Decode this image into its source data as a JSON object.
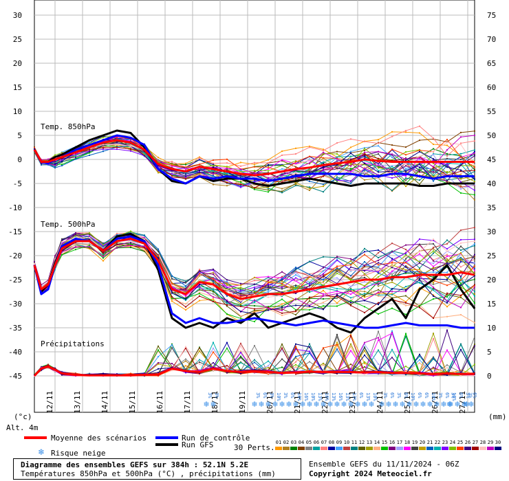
{
  "chart_data": {
    "type": "line",
    "left_axis": {
      "unit_label": "(°c)",
      "ticks": [
        30,
        25,
        20,
        15,
        10,
        5,
        0,
        -5,
        -10,
        -15,
        -20,
        -25,
        -30,
        -35,
        -40,
        -45
      ],
      "range": [
        -45,
        30
      ]
    },
    "right_axis": {
      "unit_label": "(mm)",
      "ticks": [
        75,
        70,
        65,
        60,
        55,
        50,
        45,
        40,
        35,
        30,
        25,
        20,
        15,
        10,
        5,
        0
      ],
      "range": [
        0,
        75
      ]
    },
    "altitude_label": "Alt. 4m",
    "section_labels": [
      "Temp. 850hPa",
      "Temp. 500hPa",
      "Précipitations"
    ],
    "dates": [
      "12/11",
      "13/11",
      "14/11",
      "15/11",
      "16/11",
      "17/11",
      "18/11",
      "19/11",
      "20/11",
      "21/11",
      "22/11",
      "23/11",
      "24/11",
      "25/11",
      "26/11",
      "27/11"
    ],
    "x_range_hours": [
      0,
      384
    ],
    "hours": [
      0,
      6,
      12,
      18,
      24,
      36,
      48,
      60,
      72,
      84,
      96,
      108,
      120,
      132,
      144,
      156,
      168,
      180,
      192,
      204,
      216,
      228,
      240,
      252,
      264,
      276,
      288,
      300,
      312,
      324,
      336,
      348,
      360,
      372,
      384
    ],
    "mean_850": [
      2,
      -0.5,
      -0.5,
      0,
      0.5,
      1.5,
      2.5,
      3.5,
      4,
      3.5,
      2,
      -1,
      -2,
      -2.5,
      -1.5,
      -2,
      -2.5,
      -3,
      -3.3,
      -3,
      -2.5,
      -2,
      -1.7,
      -1.2,
      -0.8,
      -0.5,
      0,
      -0.3,
      -0.5,
      -0.5,
      -0.5,
      -0.5,
      -0.5,
      -0.5,
      -0.5
    ],
    "control_850": [
      2,
      -0.5,
      -0.8,
      0,
      0.5,
      2,
      3,
      4,
      5,
      4.5,
      3,
      -2,
      -4,
      -5,
      -3.5,
      -4,
      -3.5,
      -4,
      -4,
      -4.5,
      -4,
      -3.5,
      -3,
      -3,
      -3,
      -3,
      -3.5,
      -3.5,
      -3,
      -3,
      -3.5,
      -4,
      -3.5,
      -3.5,
      -3.5
    ],
    "gfs_850": [
      2,
      -0.5,
      -0.5,
      0.5,
      1,
      2.5,
      4,
      5,
      6,
      5.5,
      2.5,
      -2,
      -4.5,
      -5,
      -3.5,
      -4.5,
      -4,
      -4,
      -5,
      -5.5,
      -5,
      -4.5,
      -4,
      -4.5,
      -5,
      -5.5,
      -5,
      -5,
      -5,
      -5,
      -5.5,
      -5.5,
      -5,
      -5,
      -5
    ],
    "mean_500": [
      -22,
      -27,
      -26,
      -22,
      -18.5,
      -17,
      -17,
      -19,
      -17,
      -16.5,
      -17.5,
      -21,
      -27,
      -28,
      -25.5,
      -26,
      -28,
      -29,
      -28.5,
      -28,
      -28,
      -27.5,
      -27,
      -26.5,
      -26,
      -25.5,
      -25,
      -25,
      -24.5,
      -24.5,
      -24,
      -24,
      -24,
      -23.5,
      -24
    ],
    "control_500": [
      -22,
      -28,
      -27,
      -22,
      -18,
      -16.5,
      -17,
      -19,
      -16.5,
      -16,
      -17,
      -22,
      -32,
      -34,
      -33,
      -34,
      -34,
      -33.5,
      -33,
      -33.5,
      -34,
      -34.5,
      -34,
      -33.5,
      -34,
      -34.5,
      -35,
      -35,
      -34.5,
      -34,
      -34.5,
      -34.5,
      -34.5,
      -35,
      -35
    ],
    "gfs_500": [
      -22,
      -27.5,
      -26,
      -21.5,
      -18,
      -17,
      -17,
      -19,
      -16,
      -15.5,
      -17,
      -23,
      -33,
      -35,
      -34,
      -35,
      -33,
      -34,
      -32,
      -35,
      -34,
      -33,
      -32,
      -33,
      -35,
      -36,
      -33,
      -31,
      -29,
      -33,
      -27,
      -25,
      -22,
      -27,
      -31
    ],
    "mean_precip": [
      0,
      1.5,
      2,
      1.3,
      0.5,
      0.2,
      0.1,
      0.1,
      0.1,
      0.1,
      0.2,
      0.3,
      1.5,
      1,
      0.8,
      1.5,
      1,
      0.8,
      1,
      0.8,
      0.6,
      0.7,
      0.9,
      0.8,
      0.8,
      0.8,
      0.7,
      0.8,
      0.6,
      0.6,
      0.5,
      0.4,
      0.5,
      0.4,
      0.4
    ],
    "snow_risk_percent": [
      {
        "hour": 150,
        "values": [
          "3%",
          "3%"
        ]
      },
      {
        "hour": 192,
        "values": [
          "3%",
          "6%",
          "3%",
          "10%",
          "3%",
          "6%",
          "10%",
          "16%",
          "10%",
          "13%",
          "16%",
          "13%",
          "16%",
          "13%",
          "13%",
          "6%",
          "13%",
          "10%"
        ]
      },
      {
        "hour": 303,
        "values": [
          "3%",
          "6%",
          "3%",
          "6%",
          "10%",
          "6%",
          "6%",
          "10%",
          "3%",
          "6%",
          "10%",
          "6%",
          "3%",
          "6%",
          "3%"
        ]
      },
      {
        "hour": 362,
        "values": [
          "3%"
        ]
      },
      {
        "hour": 377,
        "values": [
          "3%"
        ]
      }
    ],
    "legend": {
      "mean": "Moyenne des scénarios",
      "control": "Run de contrôle",
      "gfs": "Run GFS",
      "snow": "Risque neige",
      "perts_label": "30 Perts.",
      "perts": [
        "01",
        "02",
        "03",
        "04",
        "05",
        "06",
        "07",
        "08",
        "09",
        "10",
        "11",
        "12",
        "13",
        "14",
        "15",
        "16",
        "17",
        "18",
        "19",
        "20",
        "21",
        "22",
        "23",
        "24",
        "25",
        "26",
        "27",
        "28",
        "29",
        "30"
      ]
    }
  },
  "colors": {
    "mean": "#ff0000",
    "control": "#0000ff",
    "gfs": "#000000",
    "grid": "#bbbbbb",
    "perts": [
      "#ff9900",
      "#b08020",
      "#008000",
      "#804000",
      "#808080",
      "#00a0a0",
      "#ff8080",
      "#0000a0",
      "#40a0ff",
      "#c04040",
      "#008080",
      "#606000",
      "#a0a000",
      "#ffb080",
      "#00c000",
      "#800080",
      "#a0a0ff",
      "#ff00ff",
      "#404040",
      "#c0a000",
      "#0060c0",
      "#00b0b0",
      "#8000ff",
      "#80c000",
      "#ff4000",
      "#400080",
      "#a00000",
      "#ffc0c0",
      "#c000c0",
      "#000080"
    ]
  },
  "footer": {
    "title": "Diagramme des ensembles GEFS sur 384h : 52.1N 5.2E",
    "subtitle": "Températures 850hPa et 500hPa (°C) , précipitations (mm)",
    "run_info": "Ensemble GEFS du 11/11/2024 - 06Z",
    "copyright": "Copyright 2024 Meteociel.fr"
  }
}
